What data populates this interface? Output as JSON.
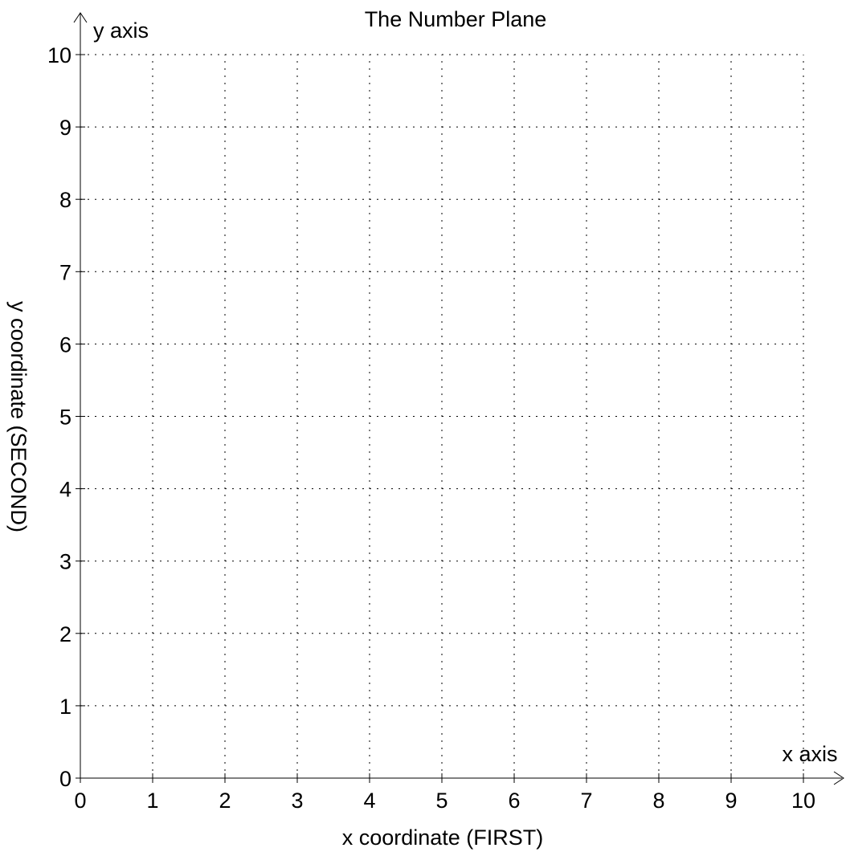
{
  "chart_data": {
    "type": "scatter",
    "title": "The Number Plane",
    "xlabel": "x coordinate (FIRST)",
    "ylabel": "y coordinate (SECOND)",
    "x_axis_name": "x axis",
    "y_axis_name": "y axis",
    "xlim": [
      0,
      10
    ],
    "ylim": [
      0,
      10
    ],
    "x_ticks": [
      "0",
      "1",
      "2",
      "3",
      "4",
      "5",
      "6",
      "7",
      "8",
      "9",
      "10"
    ],
    "y_ticks": [
      "0",
      "1",
      "2",
      "3",
      "4",
      "5",
      "6",
      "7",
      "8",
      "9",
      "10"
    ],
    "grid": true,
    "grid_style": "dotted",
    "series": []
  }
}
